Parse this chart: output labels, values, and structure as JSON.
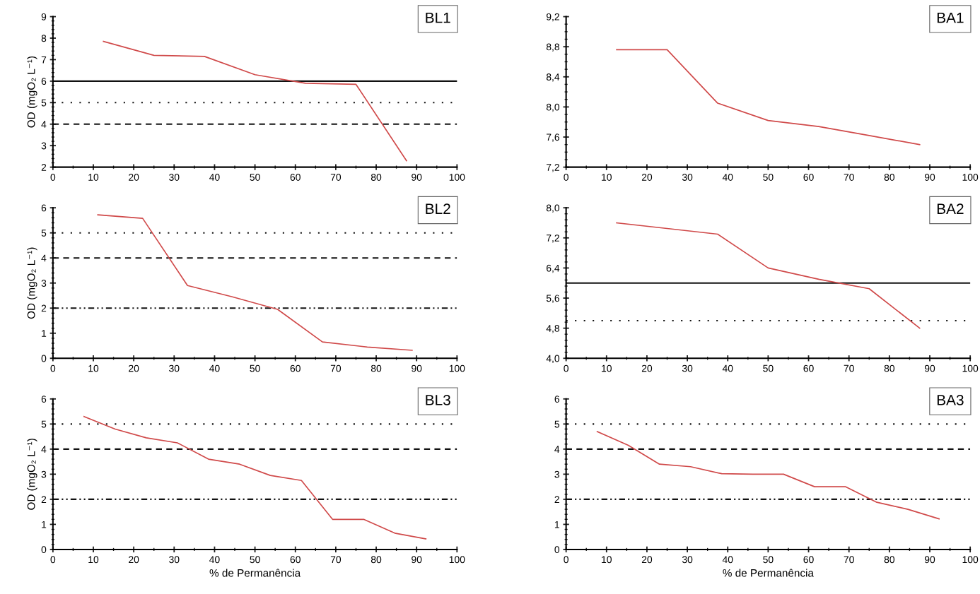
{
  "chart_data": [
    {
      "type": "line",
      "title": "BL1",
      "ylabel": "OD (mgO₂ L⁻¹)",
      "x": [
        12.5,
        25,
        37.5,
        50,
        62.5,
        75,
        87.5
      ],
      "series": [
        {
          "color": "#d04a4a",
          "values": [
            7.85,
            7.2,
            7.15,
            6.3,
            5.9,
            5.85,
            2.3
          ]
        }
      ],
      "xlim": [
        0,
        100
      ],
      "xticks": [
        0,
        10,
        20,
        30,
        40,
        50,
        60,
        70,
        80,
        90,
        100
      ],
      "ylim": [
        2,
        9
      ],
      "yticks": [
        2,
        3,
        4,
        5,
        6,
        7,
        8,
        9
      ],
      "ref_lines": [
        {
          "axis": "y",
          "value": 6,
          "line_style": "solid"
        },
        {
          "axis": "y",
          "value": 5,
          "line_style": "dotted"
        },
        {
          "axis": "y",
          "value": 4,
          "line_style": "dashed"
        }
      ],
      "grid": false,
      "legend": false
    },
    {
      "type": "line",
      "title": "BA1",
      "x": [
        12.5,
        25,
        37.5,
        50,
        62.5,
        75,
        87.5
      ],
      "series": [
        {
          "color": "#d04a4a",
          "values": [
            8.76,
            8.76,
            8.05,
            7.82,
            7.74,
            7.62,
            7.5
          ]
        }
      ],
      "xlim": [
        0,
        100
      ],
      "xticks": [
        0,
        10,
        20,
        30,
        40,
        50,
        60,
        70,
        80,
        90,
        100
      ],
      "ylim": [
        7.2,
        9.2
      ],
      "yticks": [
        {
          "value": 7.2,
          "label": "7,2"
        },
        {
          "value": 7.6,
          "label": "7,6"
        },
        {
          "value": 8.0,
          "label": "8,0"
        },
        {
          "value": 8.4,
          "label": "8,4"
        },
        {
          "value": 8.8,
          "label": "8,8"
        },
        {
          "value": 9.2,
          "label": "9,2"
        }
      ],
      "grid": false,
      "legend": false
    },
    {
      "type": "line",
      "title": "BL2",
      "ylabel": "OD (mgO₂ L⁻¹)",
      "x": [
        11.1,
        22.2,
        33.3,
        44.4,
        55.6,
        66.7,
        77.8,
        88.9
      ],
      "series": [
        {
          "color": "#d04a4a",
          "values": [
            5.72,
            5.58,
            2.9,
            2.45,
            1.95,
            0.65,
            0.45,
            0.32
          ]
        }
      ],
      "xlim": [
        0,
        100
      ],
      "xticks": [
        0,
        10,
        20,
        30,
        40,
        50,
        60,
        70,
        80,
        90,
        100
      ],
      "ylim": [
        0,
        6
      ],
      "yticks": [
        0,
        1,
        2,
        3,
        4,
        5,
        6
      ],
      "ref_lines": [
        {
          "axis": "y",
          "value": 5,
          "line_style": "dotted"
        },
        {
          "axis": "y",
          "value": 4,
          "line_style": "dashed"
        },
        {
          "axis": "y",
          "value": 2,
          "line_style": "dashdot"
        }
      ],
      "grid": false,
      "legend": false
    },
    {
      "type": "line",
      "title": "BA2",
      "x": [
        12.5,
        25,
        37.5,
        50,
        62.5,
        75,
        87.5
      ],
      "series": [
        {
          "color": "#d04a4a",
          "values": [
            7.6,
            7.45,
            7.3,
            6.4,
            6.1,
            5.85,
            4.8
          ]
        }
      ],
      "xlim": [
        0,
        100
      ],
      "xticks": [
        0,
        10,
        20,
        30,
        40,
        50,
        60,
        70,
        80,
        90,
        100
      ],
      "ylim": [
        4.0,
        8.0
      ],
      "yticks": [
        {
          "value": 4.0,
          "label": "4,0"
        },
        {
          "value": 4.8,
          "label": "4,8"
        },
        {
          "value": 5.6,
          "label": "5,6"
        },
        {
          "value": 6.4,
          "label": "6,4"
        },
        {
          "value": 7.2,
          "label": "7,2"
        },
        {
          "value": 8.0,
          "label": "8,0"
        }
      ],
      "ref_lines": [
        {
          "axis": "y",
          "value": 6,
          "line_style": "solid"
        },
        {
          "axis": "y",
          "value": 5,
          "line_style": "dotted"
        }
      ],
      "grid": false,
      "legend": false
    },
    {
      "type": "line",
      "title": "BL3",
      "xlabel": "% de Permanência",
      "ylabel": "OD (mgO₂ L⁻¹)",
      "x": [
        7.7,
        15.4,
        23.1,
        30.8,
        38.5,
        46.2,
        53.8,
        61.5,
        69.2,
        76.9,
        84.6,
        92.3
      ],
      "series": [
        {
          "color": "#d04a4a",
          "values": [
            5.3,
            4.8,
            4.45,
            4.25,
            3.6,
            3.4,
            2.95,
            2.75,
            1.2,
            1.2,
            0.65,
            0.42
          ]
        }
      ],
      "xlim": [
        0,
        100
      ],
      "xticks": [
        0,
        10,
        20,
        30,
        40,
        50,
        60,
        70,
        80,
        90,
        100
      ],
      "ylim": [
        0,
        6
      ],
      "yticks": [
        0,
        1,
        2,
        3,
        4,
        5,
        6
      ],
      "ref_lines": [
        {
          "axis": "y",
          "value": 5,
          "line_style": "dotted"
        },
        {
          "axis": "y",
          "value": 4,
          "line_style": "dashed"
        },
        {
          "axis": "y",
          "value": 2,
          "line_style": "dashdot"
        }
      ],
      "grid": false,
      "legend": false
    },
    {
      "type": "line",
      "title": "BA3",
      "xlabel": "% de Permanência",
      "x": [
        7.7,
        15.4,
        23.1,
        30.8,
        38.5,
        46.2,
        53.8,
        61.5,
        69.2,
        76.9,
        84.6,
        92.3
      ],
      "series": [
        {
          "color": "#d04a4a",
          "values": [
            4.7,
            4.15,
            3.4,
            3.3,
            3.02,
            3.0,
            3.0,
            2.5,
            2.5,
            1.88,
            1.6,
            1.22
          ]
        }
      ],
      "xlim": [
        0,
        100
      ],
      "xticks": [
        0,
        10,
        20,
        30,
        40,
        50,
        60,
        70,
        80,
        90,
        100
      ],
      "ylim": [
        0,
        6
      ],
      "yticks": [
        0,
        1,
        2,
        3,
        4,
        5,
        6
      ],
      "ref_lines": [
        {
          "axis": "y",
          "value": 5,
          "line_style": "dotted"
        },
        {
          "axis": "y",
          "value": 4,
          "line_style": "dashed"
        },
        {
          "axis": "y",
          "value": 2,
          "line_style": "dashdot"
        }
      ],
      "grid": false,
      "legend": false
    }
  ]
}
